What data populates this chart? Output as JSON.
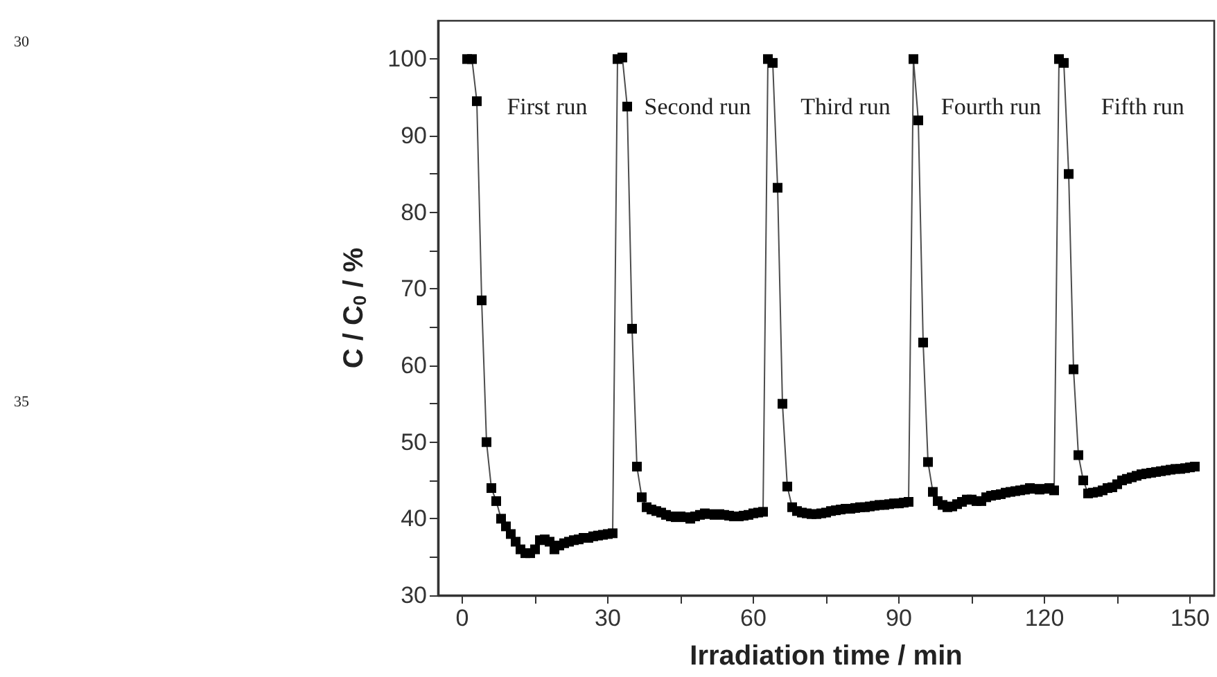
{
  "chart_data": {
    "type": "line",
    "xlabel": "Irradiation time / min",
    "ylabel": "C / C$_{0}$ / %",
    "xlim": [
      -5,
      155
    ],
    "xticks": [
      0,
      30,
      60,
      90,
      120,
      150
    ],
    "ylim": [
      30,
      105
    ],
    "yticks": [
      30,
      40,
      50,
      60,
      70,
      80,
      90,
      100
    ],
    "grid": false,
    "marker": "square",
    "line_style": "solid",
    "series": [
      {
        "color": "#000000",
        "x": [
          1,
          2,
          3,
          4,
          5,
          6,
          7,
          8,
          9,
          10,
          11,
          12,
          13,
          14,
          15,
          16,
          17,
          18,
          19,
          20,
          21,
          22,
          23,
          24,
          25,
          26,
          27,
          28,
          29,
          30,
          31,
          32,
          33,
          34,
          35,
          36,
          37,
          38,
          39,
          40,
          41,
          42,
          43,
          44,
          45,
          46,
          47,
          48,
          49,
          50,
          51,
          52,
          53,
          54,
          55,
          56,
          57,
          58,
          59,
          60,
          61,
          62,
          63,
          64,
          65,
          66,
          67,
          68,
          69,
          70,
          71,
          72,
          73,
          74,
          75,
          76,
          77,
          78,
          79,
          80,
          81,
          82,
          83,
          84,
          85,
          86,
          87,
          88,
          89,
          90,
          91,
          92,
          93,
          94,
          95,
          96,
          97,
          98,
          99,
          100,
          101,
          102,
          103,
          104,
          105,
          106,
          107,
          108,
          109,
          110,
          111,
          112,
          113,
          114,
          115,
          116,
          117,
          118,
          119,
          120,
          121,
          122,
          123,
          124,
          125,
          126,
          127,
          128,
          129,
          130,
          131,
          132,
          133,
          134,
          135,
          136,
          137,
          138,
          139,
          140,
          141,
          142,
          143,
          144,
          145,
          146,
          147,
          148,
          149,
          150,
          151
        ],
        "values": [
          100,
          100,
          94.5,
          68.5,
          50,
          44,
          42.3,
          40,
          39,
          38,
          37,
          36,
          35.5,
          35.5,
          36,
          37.2,
          37.3,
          37,
          36,
          36.5,
          36.8,
          37,
          37.2,
          37.3,
          37.5,
          37.5,
          37.7,
          37.8,
          37.9,
          38,
          38.1,
          100,
          100.2,
          93.8,
          64.8,
          46.8,
          42.8,
          41.5,
          41.2,
          41,
          40.8,
          40.5,
          40.3,
          40.2,
          40.3,
          40.2,
          40,
          40.3,
          40.5,
          40.7,
          40.6,
          40.5,
          40.6,
          40.5,
          40.4,
          40.3,
          40.3,
          40.4,
          40.5,
          40.7,
          40.8,
          40.9,
          100,
          99.5,
          83.2,
          55,
          44.2,
          41.5,
          41,
          40.8,
          40.7,
          40.6,
          40.6,
          40.7,
          40.8,
          41,
          41.1,
          41.2,
          41.3,
          41.3,
          41.4,
          41.5,
          41.5,
          41.6,
          41.7,
          41.8,
          41.8,
          41.9,
          42,
          42,
          42.1,
          42.2,
          100,
          92,
          63,
          47.4,
          43.5,
          42.3,
          41.8,
          41.5,
          41.6,
          41.9,
          42.2,
          42.5,
          42.5,
          42.3,
          42.3,
          42.8,
          43,
          43.1,
          43.2,
          43.4,
          43.5,
          43.6,
          43.7,
          43.8,
          44,
          43.9,
          43.8,
          43.9,
          44,
          43.7,
          100,
          99.5,
          85,
          59.5,
          48.3,
          45,
          43.3,
          43.4,
          43.5,
          43.7,
          44,
          44.1,
          44.5,
          45,
          45.2,
          45.4,
          45.6,
          45.8,
          45.9,
          46,
          46.1,
          46.2,
          46.3,
          46.4,
          46.5,
          46.5,
          46.6,
          46.7,
          46.8
        ]
      }
    ],
    "annotations": [
      "First run",
      "Second run",
      "Third run",
      "Fourth run",
      "Fifth run",
      "30",
      "35"
    ]
  }
}
